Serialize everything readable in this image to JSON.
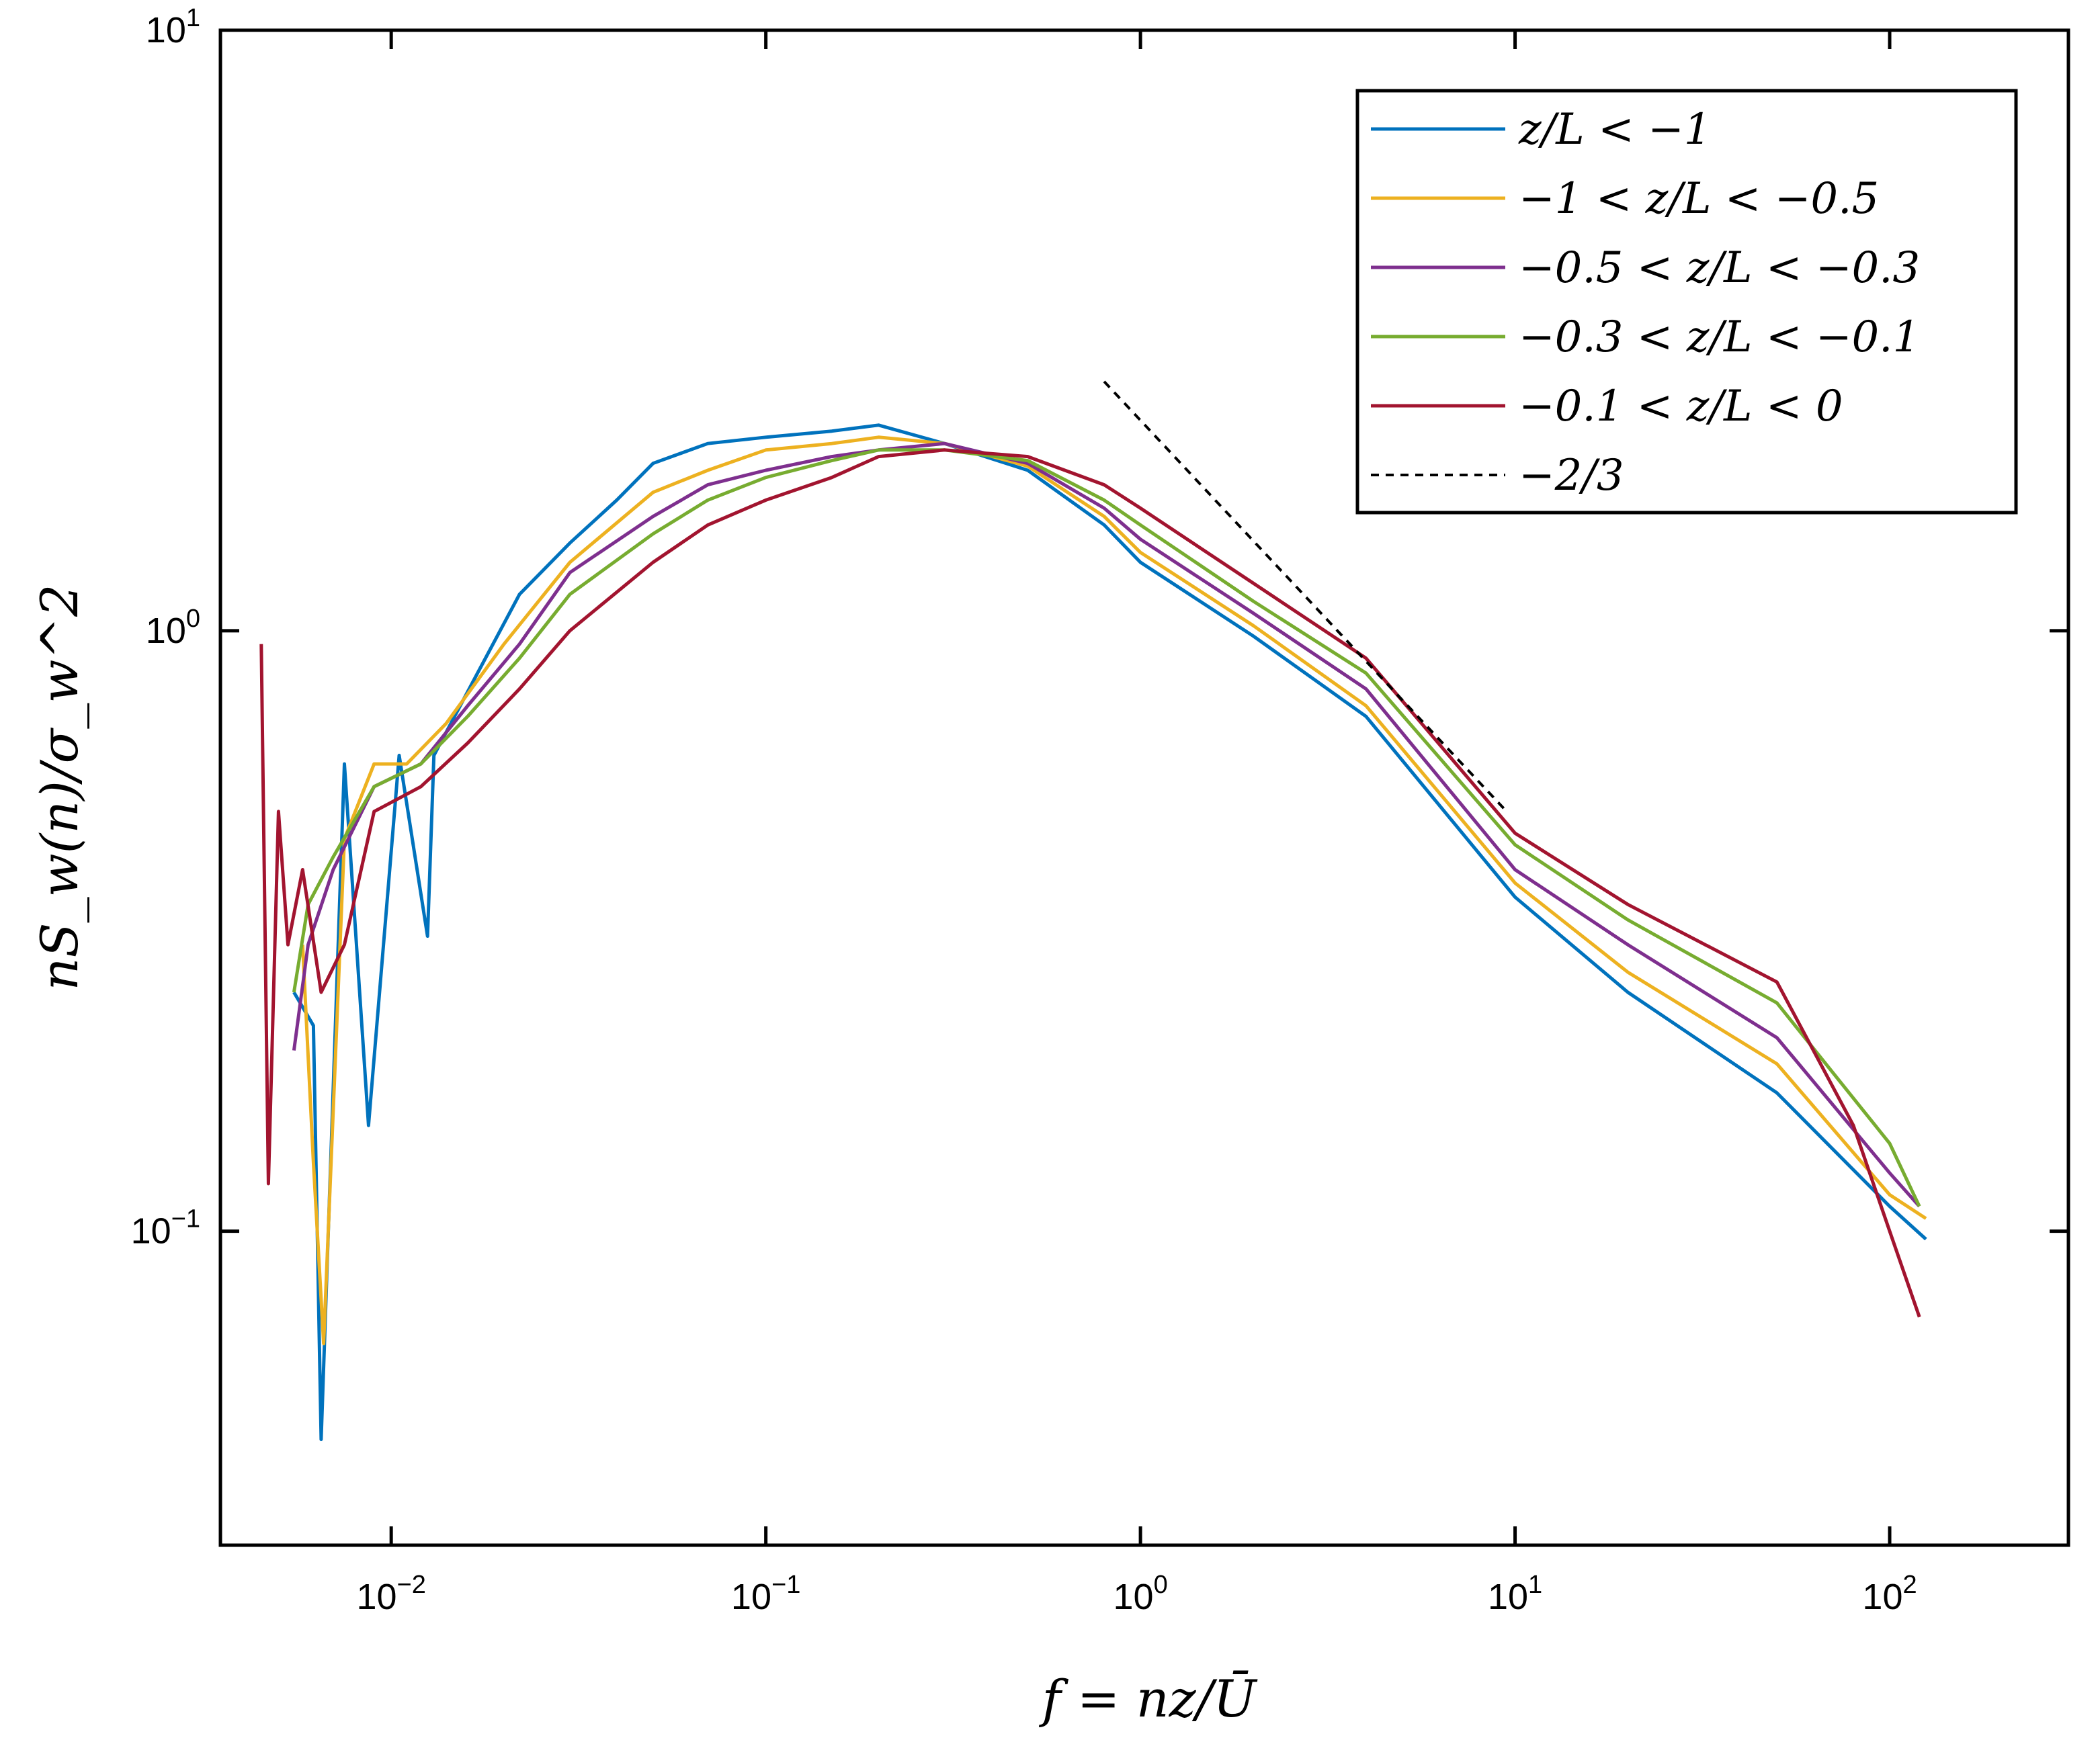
{
  "chart_data": {
    "type": "line",
    "xscale": "log",
    "yscale": "log",
    "xlim": [
      0.0035,
      300
    ],
    "ylim": [
      0.03,
      10
    ],
    "xlabel": "f = nz/Ū",
    "ylabel": "nS_w(n)/σ_w^2",
    "x_ticks": [
      {
        "base": "10",
        "exp": "−2",
        "value": 0.01
      },
      {
        "base": "10",
        "exp": "−1",
        "value": 0.1
      },
      {
        "base": "10",
        "exp": "0",
        "value": 1
      },
      {
        "base": "10",
        "exp": "1",
        "value": 10
      },
      {
        "base": "10",
        "exp": "2",
        "value": 100
      }
    ],
    "y_ticks": [
      {
        "base": "10",
        "exp": "−1",
        "value": 0.1
      },
      {
        "base": "10",
        "exp": "0",
        "value": 1
      },
      {
        "base": "10",
        "exp": "1",
        "value": 10
      }
    ],
    "legend_position": "top-right",
    "series": [
      {
        "name": "z/L < −1",
        "color": "#0072BD",
        "x": [
          0.0055,
          0.0062,
          0.0065,
          0.0075,
          0.0087,
          0.0105,
          0.0125,
          0.013,
          0.017,
          0.022,
          0.03,
          0.04,
          0.05,
          0.07,
          0.1,
          0.15,
          0.2,
          0.3,
          0.5,
          0.8,
          1,
          2,
          4,
          10,
          20,
          50,
          100,
          125
        ],
        "y": [
          0.25,
          0.22,
          0.045,
          0.6,
          0.15,
          0.62,
          0.31,
          0.62,
          0.85,
          1.15,
          1.4,
          1.65,
          1.9,
          2.05,
          2.1,
          2.15,
          2.2,
          2.05,
          1.85,
          1.5,
          1.3,
          0.98,
          0.72,
          0.36,
          0.25,
          0.17,
          0.11,
          0.097
        ]
      },
      {
        "name": "−1 < z/L < −0.5",
        "color": "#EDB120",
        "x": [
          0.0058,
          0.0062,
          0.0066,
          0.0075,
          0.009,
          0.011,
          0.014,
          0.02,
          0.03,
          0.05,
          0.07,
          0.1,
          0.15,
          0.2,
          0.3,
          0.5,
          0.8,
          1,
          2,
          4,
          10,
          20,
          50,
          100,
          125
        ],
        "y": [
          0.3,
          0.13,
          0.065,
          0.45,
          0.6,
          0.6,
          0.7,
          0.95,
          1.3,
          1.7,
          1.85,
          2.0,
          2.05,
          2.1,
          2.05,
          1.88,
          1.55,
          1.35,
          1.02,
          0.75,
          0.38,
          0.27,
          0.19,
          0.115,
          0.105
        ]
      },
      {
        "name": "−0.5 < z/L < −0.3",
        "color": "#7E2F8E",
        "x": [
          0.0055,
          0.006,
          0.007,
          0.009,
          0.012,
          0.016,
          0.022,
          0.03,
          0.05,
          0.07,
          0.1,
          0.15,
          0.2,
          0.3,
          0.5,
          0.8,
          1,
          2,
          4,
          10,
          20,
          50,
          100,
          120
        ],
        "y": [
          0.2,
          0.3,
          0.4,
          0.55,
          0.6,
          0.75,
          0.95,
          1.25,
          1.55,
          1.75,
          1.85,
          1.95,
          2.0,
          2.05,
          1.9,
          1.6,
          1.42,
          1.07,
          0.8,
          0.4,
          0.3,
          0.21,
          0.125,
          0.11
        ]
      },
      {
        "name": "−0.3 < z/L < −0.1",
        "color": "#77AC30",
        "x": [
          0.0055,
          0.006,
          0.007,
          0.009,
          0.012,
          0.016,
          0.022,
          0.03,
          0.05,
          0.07,
          0.1,
          0.15,
          0.2,
          0.3,
          0.5,
          0.8,
          1,
          2,
          4,
          10,
          20,
          50,
          100,
          120
        ],
        "y": [
          0.25,
          0.35,
          0.42,
          0.55,
          0.6,
          0.72,
          0.9,
          1.15,
          1.45,
          1.65,
          1.8,
          1.92,
          2.0,
          2.0,
          1.92,
          1.65,
          1.5,
          1.12,
          0.85,
          0.44,
          0.33,
          0.24,
          0.14,
          0.11
        ]
      },
      {
        "name": "−0.1 < z/L < 0",
        "color": "#A2142F",
        "x": [
          0.0045,
          0.0047,
          0.005,
          0.0053,
          0.0058,
          0.0065,
          0.0075,
          0.009,
          0.012,
          0.016,
          0.022,
          0.03,
          0.05,
          0.07,
          0.1,
          0.15,
          0.2,
          0.3,
          0.5,
          0.8,
          1,
          2,
          4,
          10,
          20,
          50,
          80,
          100,
          120
        ],
        "y": [
          0.95,
          0.12,
          0.5,
          0.3,
          0.4,
          0.25,
          0.3,
          0.5,
          0.55,
          0.65,
          0.8,
          1.0,
          1.3,
          1.5,
          1.65,
          1.8,
          1.95,
          2.0,
          1.95,
          1.75,
          1.6,
          1.2,
          0.9,
          0.46,
          0.35,
          0.26,
          0.15,
          0.1,
          0.072
        ]
      },
      {
        "name": "−2/3",
        "color": "#000000",
        "style": "dashed",
        "x": [
          0.8,
          9.5
        ],
        "y": [
          2.6,
          0.5
        ]
      }
    ]
  }
}
